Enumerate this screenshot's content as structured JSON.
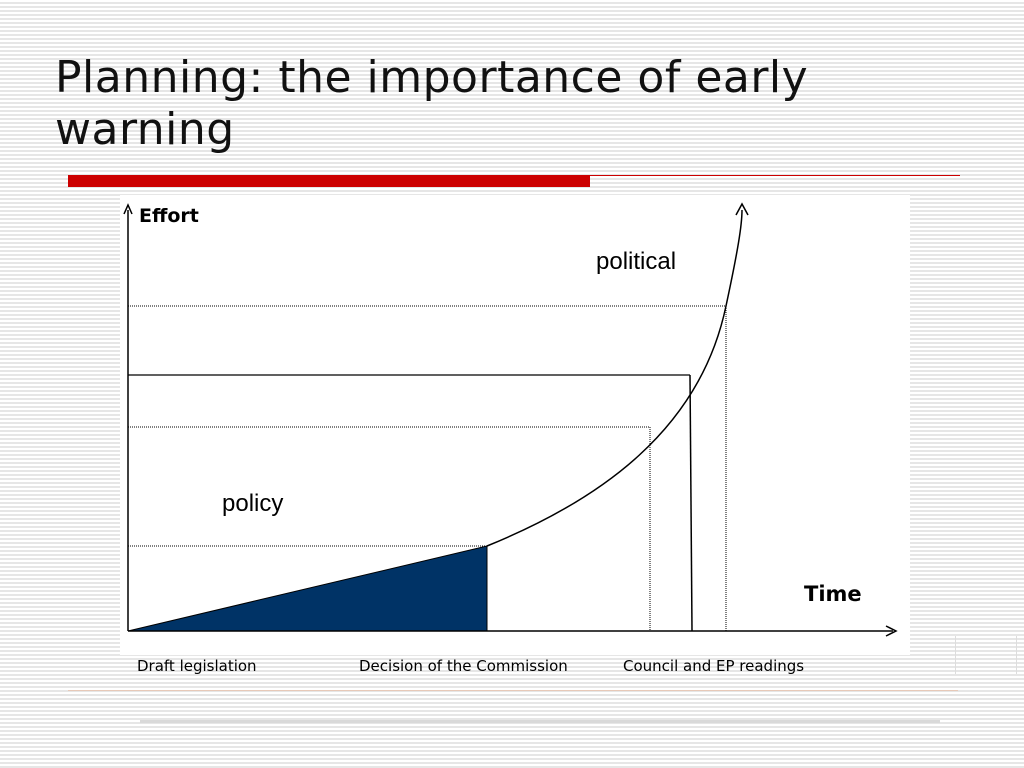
{
  "slide": {
    "title": "Planning: the importance of early warning"
  },
  "diagram": {
    "axis_y_label": "Effort",
    "axis_x_label": "Time",
    "curve_upper_label": "political",
    "area_label": "policy",
    "x_labels": {
      "draft": "Draft legislation",
      "decision": "Decision of the Commission",
      "council": "Council and EP readings"
    },
    "colors": {
      "accent_bar": "#cc0000",
      "policy_fill": "#003366",
      "lines": "#000000"
    }
  }
}
